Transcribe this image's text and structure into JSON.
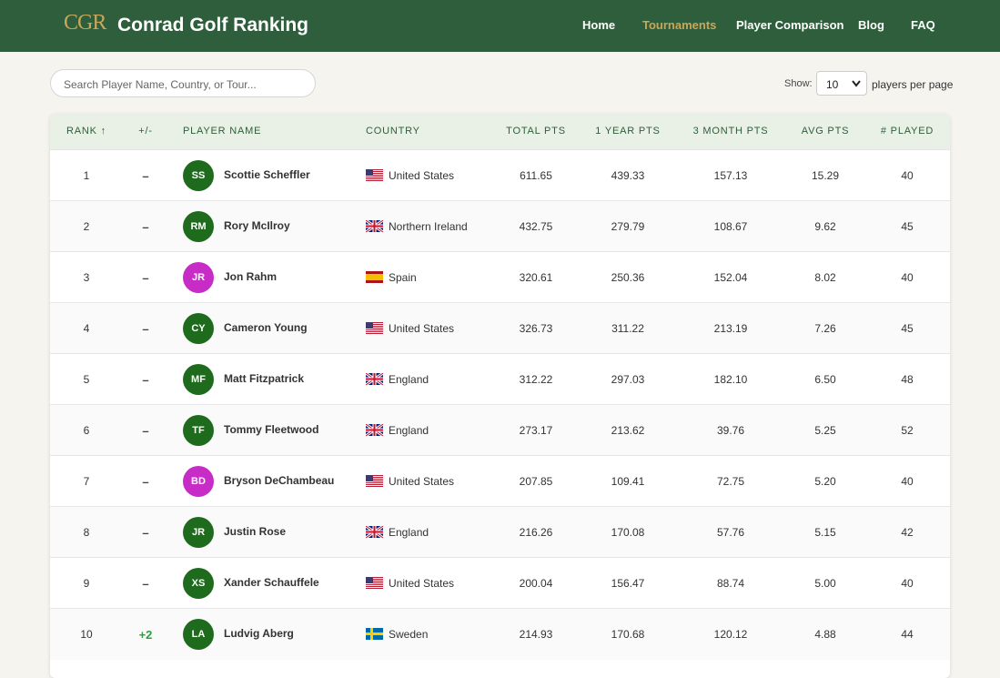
{
  "header": {
    "logo": "CGR",
    "title": "Conrad Golf Ranking",
    "nav": [
      "Home",
      "Tournaments",
      "Player Comparison",
      "Blog",
      "FAQ"
    ],
    "active_nav": 1
  },
  "search": {
    "placeholder": "Search Player Name, Country, or Tour..."
  },
  "pager": {
    "label": "Show:",
    "selected": "10",
    "suffix": "players per page"
  },
  "table": {
    "headers": [
      "RANK ↑",
      "+/-",
      "PLAYER NAME",
      "COUNTRY",
      "TOTAL PTS",
      "1 YEAR PTS",
      "3 MONTH PTS",
      "AVG PTS",
      "# PLAYED"
    ],
    "rows": [
      {
        "rank": "1",
        "change": "–",
        "initials": "SS",
        "avatar_color": "#1e6b1e",
        "name": "Scottie Scheffler",
        "flag": "us",
        "country": "United States",
        "total": "611.65",
        "year": "439.33",
        "month": "157.13",
        "avg": "15.29",
        "played": "40"
      },
      {
        "rank": "2",
        "change": "–",
        "initials": "RM",
        "avatar_color": "#1e6b1e",
        "name": "Rory McIlroy",
        "flag": "gb",
        "country": "Northern Ireland",
        "total": "432.75",
        "year": "279.79",
        "month": "108.67",
        "avg": "9.62",
        "played": "45"
      },
      {
        "rank": "3",
        "change": "–",
        "initials": "JR",
        "avatar_color": "#c72cc7",
        "name": "Jon Rahm",
        "flag": "es",
        "country": "Spain",
        "total": "320.61",
        "year": "250.36",
        "month": "152.04",
        "avg": "8.02",
        "played": "40"
      },
      {
        "rank": "4",
        "change": "–",
        "initials": "CY",
        "avatar_color": "#1e6b1e",
        "name": "Cameron Young",
        "flag": "us",
        "country": "United States",
        "total": "326.73",
        "year": "311.22",
        "month": "213.19",
        "avg": "7.26",
        "played": "45"
      },
      {
        "rank": "5",
        "change": "–",
        "initials": "MF",
        "avatar_color": "#1e6b1e",
        "name": "Matt Fitzpatrick",
        "flag": "gb",
        "country": "England",
        "total": "312.22",
        "year": "297.03",
        "month": "182.10",
        "avg": "6.50",
        "played": "48"
      },
      {
        "rank": "6",
        "change": "–",
        "initials": "TF",
        "avatar_color": "#1e6b1e",
        "name": "Tommy Fleetwood",
        "flag": "gb",
        "country": "England",
        "total": "273.17",
        "year": "213.62",
        "month": "39.76",
        "avg": "5.25",
        "played": "52"
      },
      {
        "rank": "7",
        "change": "–",
        "initials": "BD",
        "avatar_color": "#c72cc7",
        "name": "Bryson DeChambeau",
        "flag": "us",
        "country": "United States",
        "total": "207.85",
        "year": "109.41",
        "month": "72.75",
        "avg": "5.20",
        "played": "40"
      },
      {
        "rank": "8",
        "change": "–",
        "initials": "JR",
        "avatar_color": "#1e6b1e",
        "name": "Justin Rose",
        "flag": "gb",
        "country": "England",
        "total": "216.26",
        "year": "170.08",
        "month": "57.76",
        "avg": "5.15",
        "played": "42"
      },
      {
        "rank": "9",
        "change": "–",
        "initials": "XS",
        "avatar_color": "#1e6b1e",
        "name": "Xander Schauffele",
        "flag": "us",
        "country": "United States",
        "total": "200.04",
        "year": "156.47",
        "month": "88.74",
        "avg": "5.00",
        "played": "40"
      },
      {
        "rank": "10",
        "change": "+2",
        "initials": "LA",
        "avatar_color": "#1e6b1e",
        "name": "Ludvig Aberg",
        "flag": "se",
        "country": "Sweden",
        "total": "214.93",
        "year": "170.68",
        "month": "120.12",
        "avg": "4.88",
        "played": "44"
      }
    ]
  }
}
